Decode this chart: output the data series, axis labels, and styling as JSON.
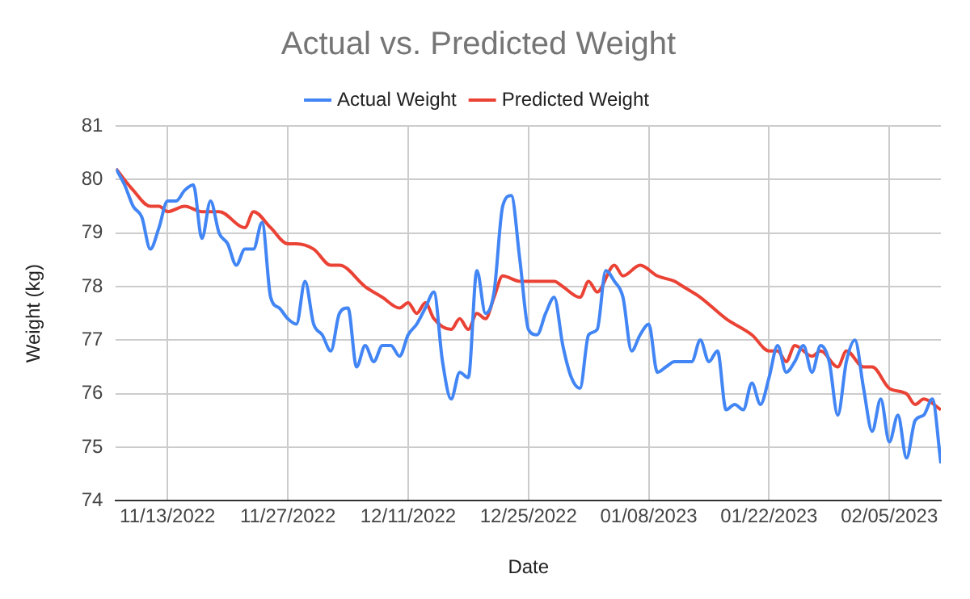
{
  "chart_data": {
    "type": "line",
    "title": "Actual vs. Predicted Weight",
    "xlabel": "Date",
    "ylabel": "Weight (kg)",
    "xlim": [
      "2022-11-07",
      "2023-02-11"
    ],
    "xticks": [
      {
        "value": "2022-11-13",
        "label": "11/13/2022"
      },
      {
        "value": "2022-11-27",
        "label": "11/27/2022"
      },
      {
        "value": "2022-12-11",
        "label": "12/11/2022"
      },
      {
        "value": "2022-12-25",
        "label": "12/25/2022"
      },
      {
        "value": "2023-01-08",
        "label": "01/08/2023"
      },
      {
        "value": "2023-01-22",
        "label": "01/22/2023"
      },
      {
        "value": "2023-02-05",
        "label": "02/05/2023"
      }
    ],
    "ylim": [
      74,
      81
    ],
    "yticks": [
      74,
      75,
      76,
      77,
      78,
      79,
      80,
      81
    ],
    "grid": true,
    "legend": "top",
    "marker": "none",
    "line_style": "solid",
    "series": [
      {
        "name": "Actual Weight",
        "color": "#4285f4",
        "x": [
          "2022-11-07",
          "2022-11-08",
          "2022-11-09",
          "2022-11-10",
          "2022-11-11",
          "2022-11-12",
          "2022-11-13",
          "2022-11-14",
          "2022-11-15",
          "2022-11-16",
          "2022-11-17",
          "2022-11-18",
          "2022-11-19",
          "2022-11-20",
          "2022-11-21",
          "2022-11-22",
          "2022-11-23",
          "2022-11-24",
          "2022-11-25",
          "2022-11-26",
          "2022-11-27",
          "2022-11-28",
          "2022-11-29",
          "2022-11-30",
          "2022-12-01",
          "2022-12-02",
          "2022-12-03",
          "2022-12-04",
          "2022-12-05",
          "2022-12-06",
          "2022-12-07",
          "2022-12-08",
          "2022-12-09",
          "2022-12-10",
          "2022-12-11",
          "2022-12-12",
          "2022-12-13",
          "2022-12-14",
          "2022-12-15",
          "2022-12-16",
          "2022-12-17",
          "2022-12-18",
          "2022-12-19",
          "2022-12-20",
          "2022-12-21",
          "2022-12-22",
          "2022-12-23",
          "2022-12-24",
          "2022-12-25",
          "2022-12-26",
          "2022-12-27",
          "2022-12-28",
          "2022-12-29",
          "2022-12-30",
          "2022-12-31",
          "2023-01-01",
          "2023-01-02",
          "2023-01-03",
          "2023-01-04",
          "2023-01-05",
          "2023-01-06",
          "2023-01-07",
          "2023-01-08",
          "2023-01-09",
          "2023-01-10",
          "2023-01-11",
          "2023-01-12",
          "2023-01-13",
          "2023-01-14",
          "2023-01-15",
          "2023-01-16",
          "2023-01-17",
          "2023-01-18",
          "2023-01-19",
          "2023-01-20",
          "2023-01-21",
          "2023-01-22",
          "2023-01-23",
          "2023-01-24",
          "2023-01-25",
          "2023-01-26",
          "2023-01-27",
          "2023-01-28",
          "2023-01-29",
          "2023-01-30",
          "2023-01-31",
          "2023-02-01",
          "2023-02-02",
          "2023-02-03",
          "2023-02-04",
          "2023-02-05",
          "2023-02-06",
          "2023-02-07",
          "2023-02-08",
          "2023-02-09",
          "2023-02-10",
          "2023-02-11"
        ],
        "values": [
          80.2,
          79.9,
          79.5,
          79.3,
          78.7,
          79.1,
          79.6,
          79.6,
          79.8,
          79.9,
          78.9,
          79.6,
          79.0,
          78.8,
          78.4,
          78.7,
          78.7,
          79.2,
          77.8,
          77.6,
          77.4,
          77.3,
          78.1,
          77.3,
          77.1,
          76.8,
          77.5,
          77.6,
          76.5,
          76.9,
          76.6,
          76.9,
          76.9,
          76.7,
          77.1,
          77.3,
          77.6,
          77.9,
          76.6,
          75.9,
          76.4,
          76.3,
          78.3,
          77.5,
          77.9,
          79.5,
          79.7,
          78.5,
          77.2,
          77.1,
          77.5,
          77.8,
          76.9,
          76.3,
          76.1,
          77.1,
          77.2,
          78.3,
          78.1,
          77.8,
          76.8,
          77.1,
          77.3,
          76.4,
          76.5,
          76.6,
          76.6,
          76.6,
          77.0,
          76.6,
          76.8,
          75.7,
          75.8,
          75.7,
          76.2,
          75.8,
          76.3,
          76.9,
          76.4,
          76.6,
          76.9,
          76.4,
          76.9,
          76.6,
          75.6,
          76.6,
          77.0,
          76.1,
          75.3,
          75.9,
          75.1,
          75.6,
          74.8,
          75.5,
          75.6,
          75.9,
          74.7
        ]
      },
      {
        "name": "Predicted Weight",
        "color": "#ea4335",
        "x": [
          "2022-11-07",
          "2022-11-09",
          "2022-11-11",
          "2022-11-12",
          "2022-11-13",
          "2022-11-15",
          "2022-11-17",
          "2022-11-19",
          "2022-11-22",
          "2022-11-23",
          "2022-11-25",
          "2022-11-27",
          "2022-11-28",
          "2022-11-30",
          "2022-12-02",
          "2022-12-03",
          "2022-12-06",
          "2022-12-08",
          "2022-12-10",
          "2022-12-11",
          "2022-12-12",
          "2022-12-13",
          "2022-12-14",
          "2022-12-16",
          "2022-12-17",
          "2022-12-18",
          "2022-12-19",
          "2022-12-20",
          "2022-12-21",
          "2022-12-22",
          "2022-12-24",
          "2022-12-26",
          "2022-12-28",
          "2022-12-29",
          "2022-12-31",
          "2023-01-01",
          "2023-01-02",
          "2023-01-04",
          "2023-01-05",
          "2023-01-07",
          "2023-01-09",
          "2023-01-11",
          "2023-01-12",
          "2023-01-14",
          "2023-01-17",
          "2023-01-20",
          "2023-01-22",
          "2023-01-23",
          "2023-01-24",
          "2023-01-25",
          "2023-01-27",
          "2023-01-28",
          "2023-01-30",
          "2023-01-31",
          "2023-02-02",
          "2023-02-03",
          "2023-02-05",
          "2023-02-07",
          "2023-02-08",
          "2023-02-09",
          "2023-02-11"
        ],
        "values": [
          80.2,
          79.8,
          79.5,
          79.5,
          79.4,
          79.5,
          79.4,
          79.4,
          79.1,
          79.4,
          79.1,
          78.8,
          78.8,
          78.7,
          78.4,
          78.4,
          78.0,
          77.8,
          77.6,
          77.7,
          77.5,
          77.7,
          77.4,
          77.2,
          77.4,
          77.2,
          77.5,
          77.4,
          77.8,
          78.2,
          78.1,
          78.1,
          78.1,
          78.0,
          77.8,
          78.1,
          77.9,
          78.4,
          78.2,
          78.4,
          78.2,
          78.1,
          78.0,
          77.8,
          77.4,
          77.1,
          76.8,
          76.8,
          76.6,
          76.9,
          76.7,
          76.8,
          76.5,
          76.8,
          76.5,
          76.5,
          76.1,
          76.0,
          75.8,
          75.9,
          75.7
        ]
      }
    ]
  }
}
